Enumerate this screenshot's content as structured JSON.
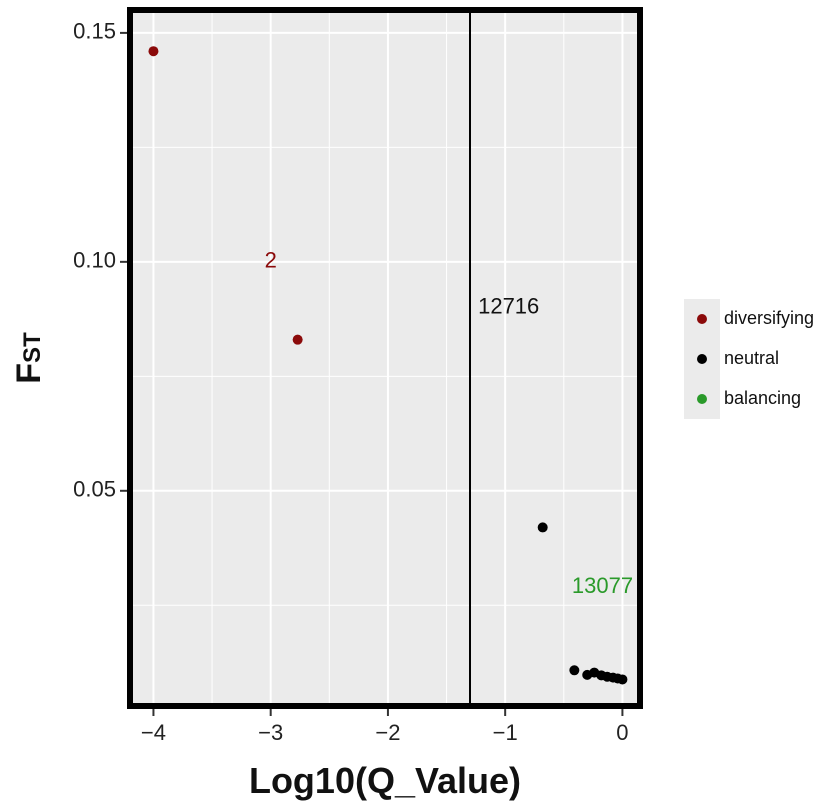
{
  "chart_data": {
    "type": "scatter",
    "title": "",
    "xlabel": "Log10(Q_Value)",
    "ylabel_main": "F",
    "ylabel_sub": "ST",
    "xlim": [
      -4.2,
      0.15
    ],
    "ylim": [
      0.003,
      0.155
    ],
    "x_ticks": [
      -4,
      -3,
      -2,
      -1,
      0
    ],
    "x_tick_labels": [
      "−4",
      "−3",
      "−2",
      "−1",
      "0"
    ],
    "y_ticks": [
      0.05,
      0.1,
      0.15
    ],
    "y_tick_labels": [
      "0.05",
      "0.10",
      "0.15"
    ],
    "grid": true,
    "legend_position": "right",
    "threshold_x": -1.3,
    "series": [
      {
        "name": "diversifying",
        "color": "#8b0a0a",
        "x": [
          -4.0,
          -2.77
        ],
        "y": [
          0.146,
          0.083
        ]
      },
      {
        "name": "neutral",
        "color": "#000000",
        "x": [
          -0.68,
          -0.41,
          -0.3,
          -0.24,
          -0.18,
          -0.13,
          -0.08,
          -0.04,
          0.0
        ],
        "y": [
          0.042,
          0.0108,
          0.0098,
          0.0103,
          0.0097,
          0.0094,
          0.0092,
          0.009,
          0.0088
        ]
      },
      {
        "name": "balancing",
        "color": "#2a9a2a",
        "x": [],
        "y": []
      }
    ],
    "annotations": [
      {
        "text": "2",
        "x": -3.0,
        "y": 0.1,
        "color": "#8b0a0a"
      },
      {
        "text": "12716",
        "x": -0.97,
        "y": 0.09,
        "color": "#111111"
      },
      {
        "text": "13077",
        "x": -0.17,
        "y": 0.029,
        "color": "#2a9a2a"
      }
    ],
    "colors": {
      "panel_bg": "#ebebeb",
      "grid": "#ffffff",
      "border": "#000000",
      "threshold": "#000000"
    }
  }
}
